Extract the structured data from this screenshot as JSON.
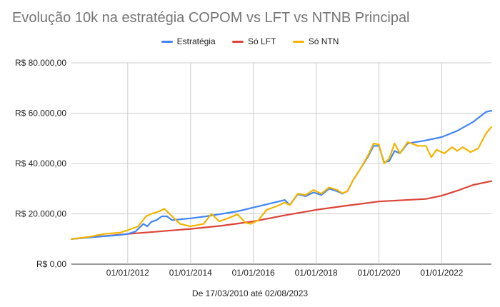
{
  "chart_data": {
    "type": "line",
    "title": "Evolução 10k na estratégia COPOM vs LFT vs NTNB Principal",
    "xlabel": "De 17/03/2010 até 02/08/2023",
    "ylabel": "",
    "x_range": [
      "2010-03-17",
      "2023-08-02"
    ],
    "ylim": [
      0,
      80000
    ],
    "y_ticks": [
      {
        "value": 0,
        "label": "R$ 0,00"
      },
      {
        "value": 20000,
        "label": "R$ 20.000,00"
      },
      {
        "value": 40000,
        "label": "R$ 40.000,00"
      },
      {
        "value": 60000,
        "label": "R$ 60.000,00"
      },
      {
        "value": 80000,
        "label": "R$ 80.000,00"
      }
    ],
    "x_ticks": [
      {
        "date": "2012-01-01",
        "label": "01/01/2012"
      },
      {
        "date": "2014-01-01",
        "label": "01/01/2014"
      },
      {
        "date": "2016-01-01",
        "label": "01/01/2016"
      },
      {
        "date": "2018-01-01",
        "label": "01/01/2018"
      },
      {
        "date": "2020-01-01",
        "label": "01/01/2020"
      },
      {
        "date": "2022-01-01",
        "label": "01/01/2022"
      }
    ],
    "grid": true,
    "legend_position": "top",
    "series": [
      {
        "name": "Estratégia",
        "color": "#4285f4",
        "points": [
          [
            "2010-03-17",
            10000
          ],
          [
            "2010-09-01",
            10500
          ],
          [
            "2011-03-01",
            11000
          ],
          [
            "2011-09-01",
            11500
          ],
          [
            "2012-01-01",
            12000
          ],
          [
            "2012-04-01",
            13000
          ],
          [
            "2012-07-01",
            16000
          ],
          [
            "2012-08-15",
            15000
          ],
          [
            "2012-10-01",
            16800
          ],
          [
            "2012-12-01",
            17500
          ],
          [
            "2013-02-01",
            19000
          ],
          [
            "2013-04-01",
            19000
          ],
          [
            "2013-06-01",
            17500
          ],
          [
            "2014-01-01",
            18200
          ],
          [
            "2014-07-01",
            19000
          ],
          [
            "2015-01-01",
            20000
          ],
          [
            "2015-07-01",
            21000
          ],
          [
            "2016-01-01",
            22500
          ],
          [
            "2016-07-01",
            24000
          ],
          [
            "2016-11-01",
            25000
          ],
          [
            "2017-01-01",
            25500
          ],
          [
            "2017-03-01",
            23500
          ],
          [
            "2017-06-01",
            27800
          ],
          [
            "2017-09-01",
            27000
          ],
          [
            "2017-12-01",
            28500
          ],
          [
            "2018-03-01",
            27500
          ],
          [
            "2018-06-01",
            30000
          ],
          [
            "2018-09-01",
            29000
          ],
          [
            "2018-11-01",
            28000
          ],
          [
            "2019-01-01",
            29000
          ],
          [
            "2019-03-01",
            33000
          ],
          [
            "2019-06-01",
            38000
          ],
          [
            "2019-09-01",
            43000
          ],
          [
            "2019-11-01",
            47000
          ],
          [
            "2020-01-01",
            47000
          ],
          [
            "2020-03-01",
            40500
          ],
          [
            "2020-05-01",
            41000
          ],
          [
            "2020-07-01",
            45000
          ],
          [
            "2020-09-01",
            44000
          ],
          [
            "2020-12-01",
            48000
          ],
          [
            "2021-06-01",
            49000
          ],
          [
            "2022-01-01",
            50500
          ],
          [
            "2022-07-01",
            53000
          ],
          [
            "2023-01-01",
            56500
          ],
          [
            "2023-06-01",
            60500
          ],
          [
            "2023-08-02",
            61000
          ]
        ]
      },
      {
        "name": "Só LFT",
        "color": "#db4437",
        "points": [
          [
            "2010-03-17",
            10000
          ],
          [
            "2011-01-01",
            10900
          ],
          [
            "2012-01-01",
            12000
          ],
          [
            "2013-01-01",
            13000
          ],
          [
            "2014-01-01",
            14000
          ],
          [
            "2015-01-01",
            15300
          ],
          [
            "2016-01-01",
            17000
          ],
          [
            "2017-01-01",
            19400
          ],
          [
            "2018-01-01",
            21600
          ],
          [
            "2019-01-01",
            23300
          ],
          [
            "2020-01-01",
            24900
          ],
          [
            "2021-01-01",
            25600
          ],
          [
            "2021-07-01",
            25900
          ],
          [
            "2022-01-01",
            27200
          ],
          [
            "2022-07-01",
            29200
          ],
          [
            "2023-01-01",
            31500
          ],
          [
            "2023-08-02",
            33000
          ]
        ]
      },
      {
        "name": "Só NTN",
        "color": "#f4b400",
        "points": [
          [
            "2010-03-17",
            10000
          ],
          [
            "2010-10-01",
            10800
          ],
          [
            "2011-04-01",
            12000
          ],
          [
            "2011-10-01",
            12500
          ],
          [
            "2012-01-01",
            13500
          ],
          [
            "2012-05-01",
            15000
          ],
          [
            "2012-08-01",
            19000
          ],
          [
            "2012-10-01",
            20000
          ],
          [
            "2013-01-01",
            21000
          ],
          [
            "2013-03-01",
            22000
          ],
          [
            "2013-06-01",
            19000
          ],
          [
            "2013-09-01",
            16000
          ],
          [
            "2014-01-01",
            15000
          ],
          [
            "2014-06-01",
            16000
          ],
          [
            "2014-09-01",
            20000
          ],
          [
            "2014-12-01",
            17000
          ],
          [
            "2015-04-01",
            18500
          ],
          [
            "2015-07-01",
            19800
          ],
          [
            "2015-10-01",
            16500
          ],
          [
            "2015-12-01",
            16000
          ],
          [
            "2016-03-01",
            17500
          ],
          [
            "2016-06-01",
            21500
          ],
          [
            "2016-11-01",
            23500
          ],
          [
            "2017-01-01",
            24500
          ],
          [
            "2017-03-01",
            23500
          ],
          [
            "2017-06-01",
            28000
          ],
          [
            "2017-09-01",
            27500
          ],
          [
            "2017-12-01",
            29500
          ],
          [
            "2018-03-01",
            28000
          ],
          [
            "2018-06-01",
            30500
          ],
          [
            "2018-09-01",
            29500
          ],
          [
            "2018-11-01",
            28200
          ],
          [
            "2019-01-01",
            29000
          ],
          [
            "2019-03-01",
            33000
          ],
          [
            "2019-06-01",
            38000
          ],
          [
            "2019-09-01",
            43500
          ],
          [
            "2019-11-01",
            48000
          ],
          [
            "2020-01-01",
            47500
          ],
          [
            "2020-03-01",
            40000
          ],
          [
            "2020-05-01",
            42000
          ],
          [
            "2020-07-01",
            48000
          ],
          [
            "2020-09-01",
            44000
          ],
          [
            "2020-12-01",
            48500
          ],
          [
            "2021-04-01",
            47000
          ],
          [
            "2021-07-01",
            47000
          ],
          [
            "2021-09-01",
            42500
          ],
          [
            "2021-11-01",
            45500
          ],
          [
            "2022-02-01",
            44000
          ],
          [
            "2022-05-01",
            46500
          ],
          [
            "2022-07-01",
            45000
          ],
          [
            "2022-09-01",
            46500
          ],
          [
            "2022-12-01",
            44500
          ],
          [
            "2023-03-01",
            46000
          ],
          [
            "2023-06-01",
            52000
          ],
          [
            "2023-08-02",
            54500
          ]
        ]
      }
    ]
  }
}
